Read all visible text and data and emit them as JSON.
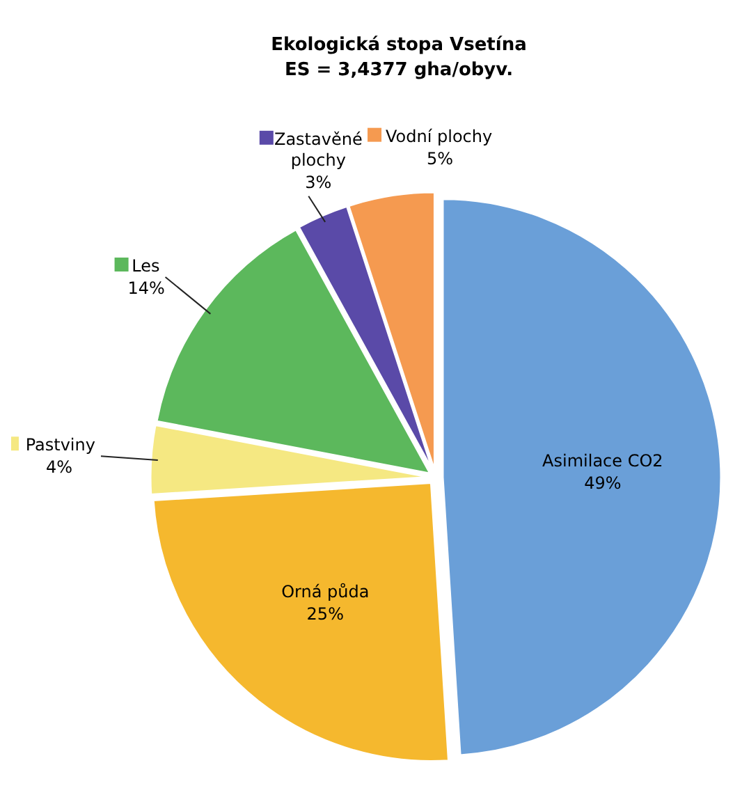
{
  "chart_data": {
    "type": "pie",
    "title": "Ekologická stopa Vsetína",
    "subtitle": "ES = 3,4377 gha/obyv.",
    "categories": [
      "Asimilace CO2",
      "Orná půda",
      "Pastviny",
      "Les",
      "Zastavěné plochy",
      "Vodní plochy"
    ],
    "values": [
      49,
      25,
      4,
      14,
      3,
      5
    ],
    "value_labels": [
      "49%",
      "25%",
      "4%",
      "14%",
      "3%",
      "5%"
    ],
    "colors": [
      "#6a9fd8",
      "#f5b82e",
      "#f5e882",
      "#5cb85c",
      "#5a4aa8",
      "#f59a50"
    ],
    "legend": "left"
  }
}
